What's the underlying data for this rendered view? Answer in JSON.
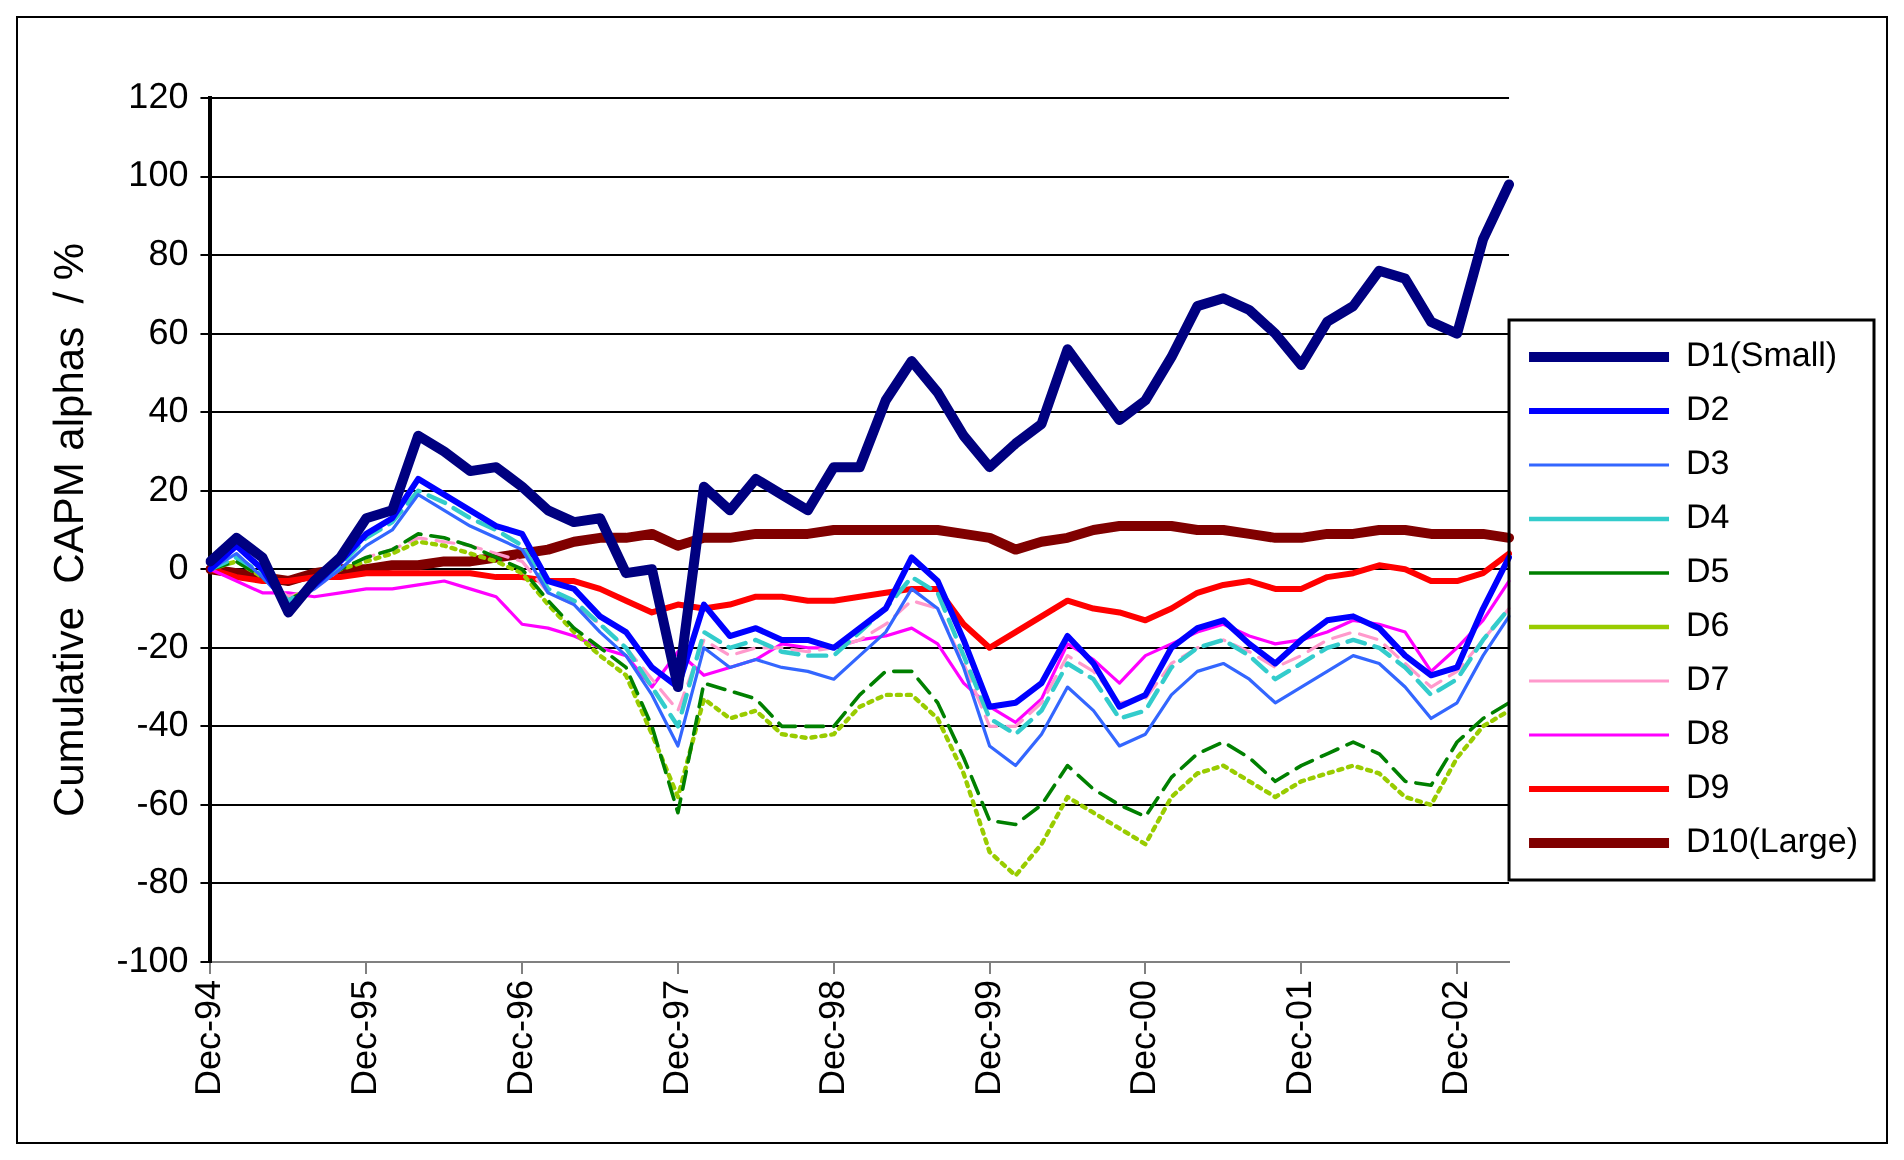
{
  "chart_data": {
    "type": "line",
    "ylabel": "Cumulative  CAPM alphas  / %",
    "categories": [
      "Dec-94",
      null,
      null,
      null,
      null,
      null,
      "Dec-95",
      null,
      null,
      null,
      null,
      null,
      "Dec-96",
      null,
      null,
      null,
      null,
      null,
      "Dec-97",
      null,
      null,
      null,
      null,
      null,
      "Dec-98",
      null,
      null,
      null,
      null,
      null,
      "Dec-99",
      null,
      null,
      null,
      null,
      null,
      "Dec-00",
      null,
      null,
      null,
      null,
      null,
      "Dec-01",
      null,
      null,
      null,
      null,
      null,
      "Dec-02",
      null,
      null
    ],
    "ylim": [
      -100,
      120
    ],
    "yticks": [
      -100,
      -80,
      -60,
      -40,
      -20,
      0,
      20,
      40,
      60,
      80,
      100,
      120
    ],
    "grid": "y",
    "legend": "right",
    "marker": "none",
    "series": [
      {
        "name": "D1(Small)",
        "color": "#000080",
        "line_style": "solid",
        "values": [
          2,
          8,
          3,
          -11,
          -3,
          3,
          13,
          15,
          34,
          30,
          25,
          26,
          21,
          15,
          12,
          13,
          -1,
          0,
          -30,
          21,
          15,
          23,
          19,
          15,
          26,
          26,
          43,
          53,
          45,
          34,
          26,
          32,
          37,
          56,
          47,
          38,
          43,
          54,
          67,
          69,
          66,
          60,
          52,
          63,
          67,
          76,
          74,
          63,
          60,
          84,
          98
        ]
      },
      {
        "name": "D2",
        "color": "#0000ff",
        "line_style": "solid",
        "values": [
          0,
          6,
          0,
          -10,
          -4,
          2,
          9,
          13,
          23,
          19,
          15,
          11,
          9,
          -3,
          -5,
          -12,
          -16,
          -25,
          -30,
          -9,
          -17,
          -15,
          -18,
          -18,
          -20,
          -15,
          -10,
          3,
          -3,
          -18,
          -35,
          -34,
          -29,
          -17,
          -24,
          -35,
          -32,
          -20,
          -15,
          -13,
          -19,
          -24,
          -18,
          -13,
          -12,
          -15,
          -22,
          -27,
          -25,
          -10,
          3
        ]
      },
      {
        "name": "D3",
        "color": "#3366ff",
        "line_style": "solid",
        "values": [
          0,
          4,
          -2,
          -9,
          -5,
          0,
          6,
          10,
          19,
          15,
          11,
          8,
          5,
          -6,
          -9,
          -16,
          -22,
          -32,
          -45,
          -20,
          -25,
          -23,
          -25,
          -26,
          -28,
          -22,
          -16,
          -5,
          -10,
          -25,
          -45,
          -50,
          -42,
          -30,
          -36,
          -45,
          -42,
          -32,
          -26,
          -24,
          -28,
          -34,
          -30,
          -26,
          -22,
          -24,
          -30,
          -38,
          -34,
          -22,
          -12
        ]
      },
      {
        "name": "D4",
        "color": "#33cccc",
        "line_style": "dashed",
        "values": [
          0,
          3,
          -1,
          -8,
          -4,
          1,
          8,
          12,
          20,
          17,
          13,
          10,
          6,
          -5,
          -8,
          -14,
          -20,
          -30,
          -40,
          -16,
          -20,
          -18,
          -21,
          -22,
          -22,
          -16,
          -10,
          -2,
          -6,
          -22,
          -38,
          -42,
          -36,
          -24,
          -28,
          -38,
          -36,
          -25,
          -20,
          -18,
          -22,
          -28,
          -24,
          -20,
          -18,
          -20,
          -25,
          -32,
          -28,
          -18,
          -10
        ]
      },
      {
        "name": "D5",
        "color": "#008000",
        "line_style": "dashed",
        "values": [
          0,
          2,
          -2,
          -8,
          -4,
          0,
          3,
          5,
          9,
          8,
          6,
          3,
          0,
          -8,
          -15,
          -20,
          -25,
          -40,
          -62,
          -29,
          -31,
          -33,
          -40,
          -40,
          -40,
          -32,
          -26,
          -26,
          -34,
          -48,
          -64,
          -65,
          -60,
          -50,
          -56,
          -60,
          -63,
          -53,
          -47,
          -44,
          -48,
          -54,
          -50,
          -47,
          -44,
          -47,
          -54,
          -55,
          -44,
          -38,
          -34
        ]
      },
      {
        "name": "D6",
        "color": "#99cc00",
        "line_style": "dotted",
        "values": [
          0,
          2,
          -2,
          -8,
          -4,
          0,
          2,
          4,
          7,
          6,
          4,
          2,
          -1,
          -9,
          -16,
          -22,
          -27,
          -42,
          -58,
          -33,
          -38,
          -36,
          -42,
          -43,
          -42,
          -35,
          -32,
          -32,
          -38,
          -52,
          -72,
          -78,
          -70,
          -58,
          -62,
          -66,
          -70,
          -58,
          -52,
          -50,
          -54,
          -58,
          -54,
          -52,
          -50,
          -52,
          -58,
          -60,
          -48,
          -40,
          -36
        ]
      },
      {
        "name": "D7",
        "color": "#ff99cc",
        "line_style": "dashed",
        "values": [
          0,
          2,
          -2,
          -7,
          -5,
          0,
          3,
          5,
          8,
          7,
          6,
          4,
          2,
          -6,
          -9,
          -14,
          -20,
          -28,
          -36,
          -18,
          -22,
          -20,
          -20,
          -21,
          -20,
          -18,
          -14,
          -8,
          -10,
          -24,
          -40,
          -40,
          -34,
          -22,
          -26,
          -34,
          -33,
          -24,
          -20,
          -18,
          -21,
          -25,
          -22,
          -18,
          -16,
          -18,
          -24,
          -30,
          -26,
          -18,
          -10
        ]
      },
      {
        "name": "D8",
        "color": "#ff00ff",
        "line_style": "solid",
        "values": [
          0,
          -3,
          -6,
          -6,
          -7,
          -6,
          -5,
          -5,
          -4,
          -3,
          -5,
          -7,
          -14,
          -15,
          -17,
          -20,
          -22,
          -30,
          -21,
          -27,
          -25,
          -23,
          -19,
          -20,
          -20,
          -18,
          -17,
          -15,
          -19,
          -29,
          -35,
          -39,
          -33,
          -19,
          -23,
          -29,
          -22,
          -19,
          -16,
          -14,
          -17,
          -19,
          -18,
          -16,
          -13,
          -14,
          -16,
          -26,
          -20,
          -13,
          -3
        ]
      },
      {
        "name": "D9",
        "color": "#ff0000",
        "line_style": "solid",
        "values": [
          0,
          -2,
          -3,
          -3,
          -2,
          -2,
          -1,
          -1,
          -1,
          -1,
          -1,
          -2,
          -2,
          -3,
          -3,
          -5,
          -8,
          -11,
          -9,
          -10,
          -9,
          -7,
          -7,
          -8,
          -8,
          -7,
          -6,
          -5,
          -5,
          -14,
          -20,
          -16,
          -12,
          -8,
          -10,
          -11,
          -13,
          -10,
          -6,
          -4,
          -3,
          -5,
          -5,
          -2,
          -1,
          1,
          0,
          -3,
          -3,
          -1,
          4
        ]
      },
      {
        "name": "D10(Large)",
        "color": "#800000",
        "line_style": "solid",
        "values": [
          0,
          -1,
          -2,
          -3,
          -1,
          0,
          0,
          1,
          1,
          2,
          2,
          3,
          4,
          5,
          7,
          8,
          8,
          9,
          6,
          8,
          8,
          9,
          9,
          9,
          10,
          10,
          10,
          10,
          10,
          9,
          8,
          5,
          7,
          8,
          10,
          11,
          11,
          11,
          10,
          10,
          9,
          8,
          8,
          9,
          9,
          10,
          10,
          9,
          9,
          9,
          8
        ]
      }
    ]
  }
}
